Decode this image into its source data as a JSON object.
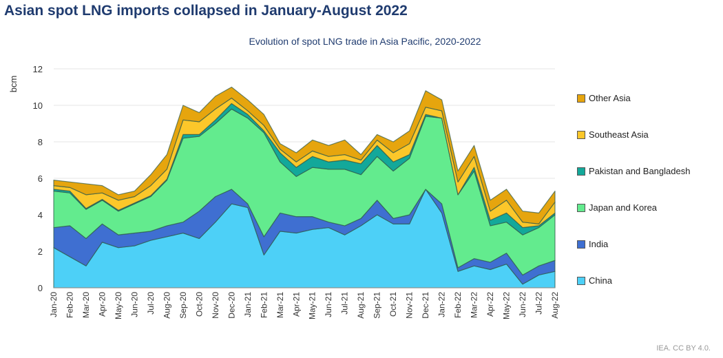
{
  "title": "Asian spot LNG imports collapsed in January-August 2022",
  "credit": "IEA. CC BY 4.0.",
  "chart_data": {
    "type": "area",
    "stacked": true,
    "title": "Evolution of spot LNG trade in Asia Pacific, 2020-2022",
    "ylabel": "bcm",
    "xlabel": "",
    "ylim": [
      0,
      12
    ],
    "yticks": [
      0,
      2,
      4,
      6,
      8,
      10,
      12
    ],
    "grid": true,
    "legend_position": "right",
    "categories": [
      "Jan-20",
      "Feb-20",
      "Mar-20",
      "Apr-20",
      "May-20",
      "Jun-20",
      "Jul-20",
      "Aug-20",
      "Sep-20",
      "Oct-20",
      "Nov-20",
      "Dec-20",
      "Jan-21",
      "Feb-21",
      "Mar-21",
      "Apr-21",
      "May-21",
      "Jun-21",
      "Jul-21",
      "Aug-21",
      "Sep-21",
      "Oct-21",
      "Nov-21",
      "Dec-21",
      "Jan-22",
      "Feb-22",
      "Mar-22",
      "Apr-22",
      "May-22",
      "Jun-22",
      "Jul-22",
      "Aug-22"
    ],
    "series": [
      {
        "name": "China",
        "color": "#4dd0f7",
        "values": [
          2.2,
          1.7,
          1.2,
          2.5,
          2.2,
          2.3,
          2.6,
          2.8,
          3.0,
          2.7,
          3.6,
          4.6,
          4.4,
          1.8,
          3.1,
          3.0,
          3.2,
          3.3,
          2.9,
          3.4,
          4.0,
          3.5,
          3.5,
          5.4,
          4.1,
          0.9,
          1.2,
          1.0,
          1.3,
          0.2,
          0.7,
          0.9
        ]
      },
      {
        "name": "India",
        "color": "#3f6fd1",
        "values": [
          1.1,
          1.7,
          1.5,
          1.0,
          0.7,
          0.7,
          0.5,
          0.6,
          0.6,
          1.5,
          1.4,
          0.8,
          0.2,
          1.0,
          1.0,
          0.9,
          0.7,
          0.3,
          0.5,
          0.4,
          0.8,
          0.3,
          0.5,
          0.0,
          0.5,
          0.2,
          0.4,
          0.4,
          0.6,
          0.5,
          0.5,
          0.6
        ]
      },
      {
        "name": "Japan and Korea",
        "color": "#63eb8e",
        "values": [
          2.0,
          1.8,
          1.6,
          1.3,
          1.3,
          1.6,
          1.9,
          2.5,
          4.6,
          4.1,
          4.0,
          4.4,
          4.7,
          5.7,
          2.8,
          2.2,
          2.7,
          2.9,
          3.1,
          2.4,
          2.4,
          2.6,
          3.1,
          4.0,
          4.7,
          4.0,
          4.8,
          2.0,
          1.7,
          2.2,
          2.1,
          2.5
        ]
      },
      {
        "name": "Pakistan and Bangladesh",
        "color": "#13a89a",
        "values": [
          0.1,
          0.1,
          0.05,
          0.05,
          0.05,
          0.05,
          0.05,
          0.05,
          0.2,
          0.1,
          0.2,
          0.3,
          0.2,
          0.1,
          0.5,
          0.5,
          0.6,
          0.4,
          0.5,
          0.6,
          0.6,
          0.5,
          0.2,
          0.1,
          0.0,
          0.0,
          0.2,
          0.3,
          0.5,
          0.4,
          0.1,
          0.1
        ]
      },
      {
        "name": "Southeast Asia",
        "color": "#fcc72a",
        "values": [
          0.2,
          0.2,
          0.75,
          0.35,
          0.55,
          0.35,
          0.55,
          0.55,
          0.8,
          0.7,
          0.6,
          0.3,
          0.2,
          0.3,
          0.2,
          0.3,
          0.3,
          0.3,
          0.3,
          0.2,
          0.3,
          0.5,
          0.6,
          0.4,
          0.4,
          0.7,
          0.6,
          0.5,
          0.7,
          0.3,
          0.1,
          0.6
        ]
      },
      {
        "name": "Other Asia",
        "color": "#e6a50e",
        "values": [
          0.3,
          0.3,
          0.6,
          0.4,
          0.3,
          0.3,
          0.6,
          0.8,
          0.8,
          0.5,
          0.7,
          0.6,
          0.6,
          0.6,
          0.3,
          0.5,
          0.6,
          0.6,
          0.8,
          0.3,
          0.3,
          0.6,
          0.7,
          0.9,
          0.6,
          0.6,
          0.6,
          0.6,
          0.6,
          0.6,
          0.6,
          0.6
        ]
      }
    ]
  }
}
